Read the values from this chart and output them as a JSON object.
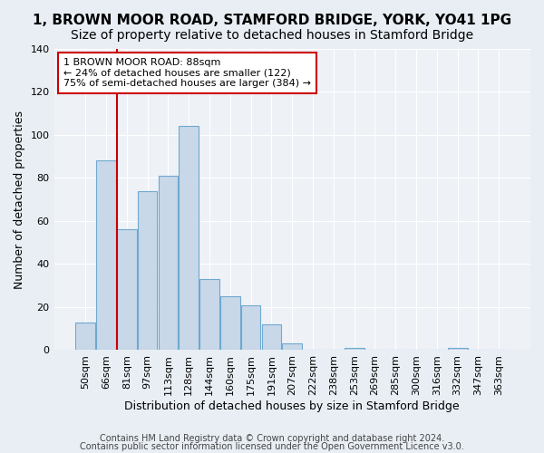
{
  "title1": "1, BROWN MOOR ROAD, STAMFORD BRIDGE, YORK, YO41 1PG",
  "title2": "Size of property relative to detached houses in Stamford Bridge",
  "xlabel": "Distribution of detached houses by size in Stamford Bridge",
  "ylabel": "Number of detached properties",
  "bin_labels": [
    "50sqm",
    "66sqm",
    "81sqm",
    "97sqm",
    "113sqm",
    "128sqm",
    "144sqm",
    "160sqm",
    "175sqm",
    "191sqm",
    "207sqm",
    "222sqm",
    "238sqm",
    "253sqm",
    "269sqm",
    "285sqm",
    "300sqm",
    "316sqm",
    "332sqm",
    "347sqm",
    "363sqm"
  ],
  "bar_heights": [
    13,
    88,
    56,
    74,
    81,
    104,
    33,
    25,
    21,
    12,
    3,
    0,
    0,
    1,
    0,
    0,
    0,
    0,
    1,
    0,
    0
  ],
  "bar_color": "#c8d8e8",
  "bar_edge_color": "#6fa8d0",
  "background_color": "#e8eef4",
  "plot_bg_color": "#eef2f7",
  "grid_color": "#ffffff",
  "annotation_text": "1 BROWN MOOR ROAD: 88sqm\n← 24% of detached houses are smaller (122)\n75% of semi-detached houses are larger (384) →",
  "annotation_box_color": "#ffffff",
  "annotation_border_color": "#cc0000",
  "footer1": "Contains HM Land Registry data © Crown copyright and database right 2024.",
  "footer2": "Contains public sector information licensed under the Open Government Licence v3.0.",
  "ylim": [
    0,
    140
  ],
  "title1_fontsize": 11,
  "title2_fontsize": 10,
  "xlabel_fontsize": 9,
  "ylabel_fontsize": 9,
  "tick_fontsize": 8,
  "footer_fontsize": 7,
  "red_line_x": 1.525
}
